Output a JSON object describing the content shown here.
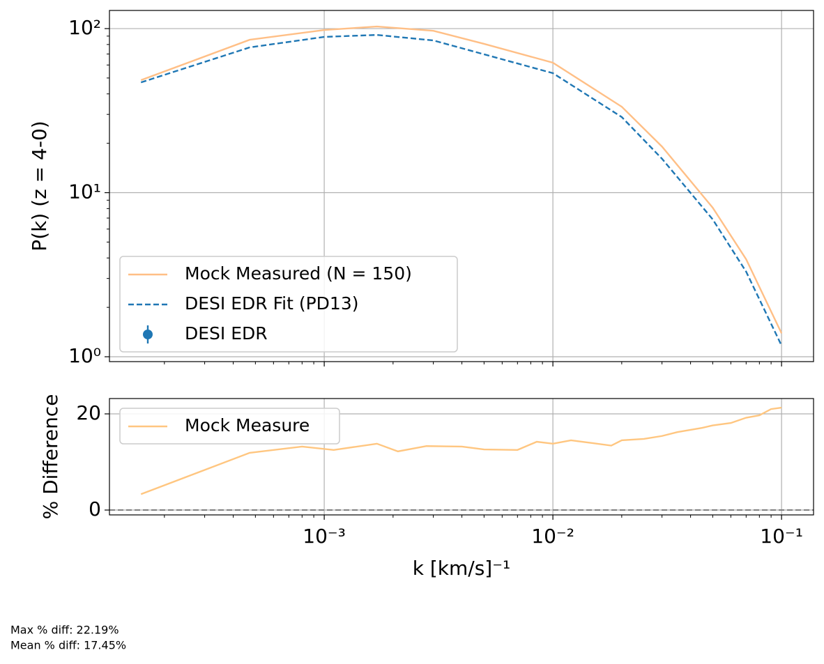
{
  "chart_data": [
    {
      "type": "line",
      "ylabel": "P(k)    (z = 4-0)",
      "xscale": "log",
      "yscale": "log",
      "xlim": [
        0.000115,
        0.138
      ],
      "ylim": [
        0.934,
        129
      ],
      "xticks": [
        0.001,
        0.01,
        0.1
      ],
      "xtick_labels": false,
      "yticks": [
        {
          "value": 100,
          "label": "10²"
        },
        {
          "value": 10,
          "label": "10¹"
        },
        {
          "value": 1,
          "label": "10⁰"
        }
      ],
      "grid": true,
      "legend": "lower left",
      "x": [
        0.000158,
        0.000472,
        0.001,
        0.0017,
        0.003,
        0.005,
        0.01,
        0.02,
        0.03,
        0.05,
        0.07,
        0.1
      ],
      "series": [
        {
          "name": "Mock Measured (N = 150)",
          "color": "#ffbf86",
          "linestyle": "solid",
          "values": [
            48.5,
            85.5,
            98,
            103,
            97,
            80.7,
            62,
            33.4,
            19.1,
            8.1,
            3.93,
            1.39
          ]
        },
        {
          "name": "DESI EDR Fit (PD13)",
          "color": "#1f77b4",
          "linestyle": "dashed",
          "values": [
            47,
            76.8,
            89,
            91.5,
            84.7,
            69.7,
            53.5,
            28.9,
            16.1,
            6.87,
            3.3,
            1.17
          ]
        }
      ],
      "legend_entries": [
        {
          "label": "DESI EDR",
          "marker": "errorbar",
          "color": "#1f77b4"
        }
      ]
    },
    {
      "type": "line",
      "ylabel": "% Difference",
      "xlabel": "k [km/s]⁻¹",
      "xscale": "log",
      "xlim": [
        0.000115,
        0.138
      ],
      "ylim": [
        -1.01,
        23.19
      ],
      "xticks": [
        {
          "value": 0.001,
          "label": "10⁻³"
        },
        {
          "value": 0.01,
          "label": "10⁻²"
        },
        {
          "value": 0.1,
          "label": "10⁻¹"
        }
      ],
      "yticks": [
        0,
        20
      ],
      "grid": true,
      "legend": "upper left",
      "hline": {
        "value": 0,
        "color": "#808080"
      },
      "x": [
        0.000158,
        0.000472,
        0.0008,
        0.0011,
        0.0017,
        0.0021,
        0.0028,
        0.004,
        0.005,
        0.007,
        0.0085,
        0.01,
        0.012,
        0.015,
        0.018,
        0.02,
        0.025,
        0.03,
        0.035,
        0.045,
        0.05,
        0.06,
        0.07,
        0.08,
        0.09,
        0.1
      ],
      "series": [
        {
          "name": "Mock Measure",
          "color": "#ffc680",
          "linestyle": "solid",
          "values": [
            3.3,
            11.9,
            13.2,
            12.5,
            13.8,
            12.2,
            13.3,
            13.2,
            12.6,
            12.5,
            14.2,
            13.8,
            14.5,
            13.9,
            13.4,
            14.5,
            14.8,
            15.4,
            16.2,
            17.1,
            17.6,
            18.1,
            19.2,
            19.7,
            21.0,
            21.3
          ]
        }
      ]
    }
  ],
  "annotations": [
    "Max  % diff: 22.19%",
    "Mean % diff: 17.45%"
  ]
}
